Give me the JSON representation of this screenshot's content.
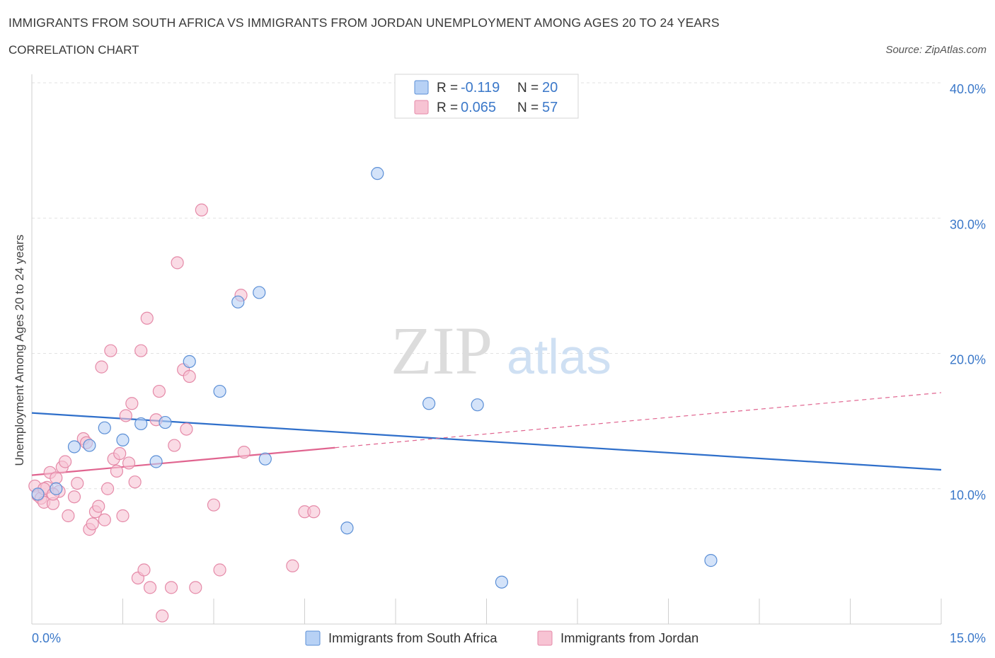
{
  "header": {
    "title": "IMMIGRANTS FROM SOUTH AFRICA VS IMMIGRANTS FROM JORDAN UNEMPLOYMENT AMONG AGES 20 TO 24 YEARS",
    "subtitle": "CORRELATION CHART",
    "source": "Source: ZipAtlas.com"
  },
  "colors": {
    "series1_fill": "#b7d1f5",
    "series1_stroke": "#5b8fd6",
    "series1_line": "#2f6fca",
    "series2_fill": "#f7c3d3",
    "series2_stroke": "#e58aa8",
    "series2_line": "#e0648f",
    "axis_label": "#3b78c9",
    "grid": "#e2e2e2"
  },
  "legend": {
    "r_label": "R =",
    "n_label": "N =",
    "rows": [
      {
        "r": "-0.119",
        "n": "20"
      },
      {
        "r": "0.065",
        "n": "57"
      }
    ]
  },
  "watermark": {
    "zip": "ZIP",
    "atlas": "atlas"
  },
  "chart_data": {
    "type": "scatter",
    "title": "IMMIGRANTS FROM SOUTH AFRICA VS IMMIGRANTS FROM JORDAN UNEMPLOYMENT AMONG AGES 20 TO 24 YEARS",
    "xlabel": "",
    "ylabel": "Unemployment Among Ages 20 to 24 years",
    "xlim": [
      0,
      15
    ],
    "ylim": [
      0,
      40
    ],
    "x_tick_labels": [
      "0.0%",
      "15.0%"
    ],
    "y_ticks": [
      10,
      20,
      30,
      40
    ],
    "y_tick_labels": [
      "10.0%",
      "20.0%",
      "30.0%",
      "40.0%"
    ],
    "grid": true,
    "legend_position": "top-center",
    "series": [
      {
        "name": "Immigrants from South Africa",
        "r": -0.119,
        "n": 20,
        "trend": {
          "x": [
            0,
            15
          ],
          "y": [
            15.6,
            11.4
          ],
          "dashed_from": null
        },
        "points": [
          [
            0.1,
            9.6
          ],
          [
            0.4,
            10.0
          ],
          [
            0.7,
            13.1
          ],
          [
            0.95,
            13.2
          ],
          [
            1.2,
            14.5
          ],
          [
            1.5,
            13.6
          ],
          [
            1.8,
            14.8
          ],
          [
            2.05,
            12.0
          ],
          [
            2.2,
            14.9
          ],
          [
            2.6,
            19.4
          ],
          [
            3.1,
            17.2
          ],
          [
            3.4,
            23.8
          ],
          [
            3.75,
            24.5
          ],
          [
            3.85,
            12.2
          ],
          [
            5.2,
            7.1
          ],
          [
            5.7,
            33.3
          ],
          [
            6.55,
            16.3
          ],
          [
            7.35,
            16.2
          ],
          [
            7.75,
            3.1
          ],
          [
            11.2,
            4.7
          ]
        ]
      },
      {
        "name": "Immigrants from Jordan",
        "r": 0.065,
        "n": 57,
        "trend": {
          "x": [
            0,
            15
          ],
          "y": [
            11.0,
            17.1
          ],
          "dashed_from": 5.0
        },
        "points": [
          [
            0.05,
            10.2
          ],
          [
            0.1,
            9.5
          ],
          [
            0.15,
            9.3
          ],
          [
            0.2,
            9.0
          ],
          [
            0.25,
            10.1
          ],
          [
            0.3,
            11.2
          ],
          [
            0.35,
            8.9
          ],
          [
            0.4,
            10.8
          ],
          [
            0.45,
            9.8
          ],
          [
            0.5,
            11.6
          ],
          [
            0.55,
            12.0
          ],
          [
            0.6,
            8.0
          ],
          [
            0.7,
            9.4
          ],
          [
            0.75,
            10.4
          ],
          [
            0.85,
            13.7
          ],
          [
            0.9,
            13.4
          ],
          [
            0.95,
            7.0
          ],
          [
            1.0,
            7.4
          ],
          [
            1.05,
            8.3
          ],
          [
            1.1,
            8.7
          ],
          [
            1.15,
            19.0
          ],
          [
            1.2,
            7.7
          ],
          [
            1.25,
            10.0
          ],
          [
            1.3,
            20.2
          ],
          [
            1.35,
            12.2
          ],
          [
            1.4,
            11.3
          ],
          [
            1.45,
            12.6
          ],
          [
            1.5,
            8.0
          ],
          [
            1.55,
            15.4
          ],
          [
            1.6,
            11.9
          ],
          [
            1.65,
            16.3
          ],
          [
            1.7,
            10.5
          ],
          [
            1.75,
            3.4
          ],
          [
            1.8,
            20.2
          ],
          [
            1.85,
            4.0
          ],
          [
            1.9,
            22.6
          ],
          [
            1.95,
            2.7
          ],
          [
            2.05,
            15.1
          ],
          [
            2.1,
            17.2
          ],
          [
            2.15,
            0.6
          ],
          [
            2.3,
            2.7
          ],
          [
            2.35,
            13.2
          ],
          [
            2.4,
            26.7
          ],
          [
            2.5,
            18.8
          ],
          [
            2.55,
            14.4
          ],
          [
            2.6,
            18.3
          ],
          [
            2.7,
            2.7
          ],
          [
            2.8,
            30.6
          ],
          [
            3.0,
            8.8
          ],
          [
            3.1,
            4.0
          ],
          [
            3.45,
            24.3
          ],
          [
            3.5,
            12.7
          ],
          [
            4.3,
            4.3
          ],
          [
            4.5,
            8.3
          ],
          [
            4.65,
            8.3
          ],
          [
            0.2,
            10.0
          ],
          [
            0.35,
            9.6
          ]
        ]
      }
    ]
  },
  "bottom_legend": {
    "items": [
      "Immigrants from South Africa",
      "Immigrants from Jordan"
    ]
  }
}
